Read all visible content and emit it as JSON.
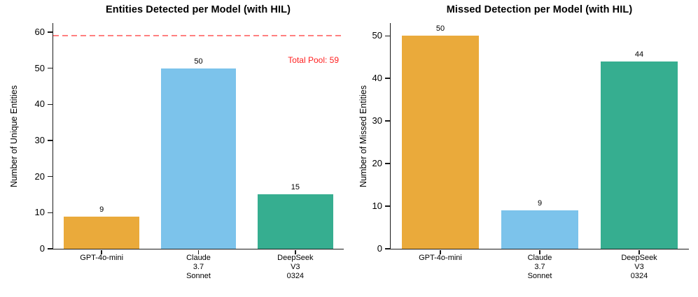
{
  "figure": {
    "background": "#ffffff",
    "text_color": "#000000",
    "axis_color": "#1a1a1a"
  },
  "chart_data": [
    {
      "type": "bar",
      "title": "Entities Detected per Model (with HIL)",
      "ylabel": "Number of Unique Entities",
      "xlabel": "",
      "categories": [
        "GPT-4o-mini",
        "Claude\n3.7\nSonnet",
        "DeepSeek\nV3\n0324"
      ],
      "values": [
        9,
        50,
        15
      ],
      "bar_labels": [
        "9",
        "50",
        "15"
      ],
      "bar_colors": [
        "#EAAA3B",
        "#7CC3EB",
        "#36AE90"
      ],
      "yticks": [
        0,
        10,
        20,
        30,
        40,
        50,
        60
      ],
      "ylim": [
        0,
        62.5
      ],
      "grid": false,
      "legend": null,
      "threshold": {
        "value": 59,
        "label": "Total Pool: 59",
        "line_color": "#FF8080",
        "label_color": "#FF1E1E",
        "style": "dashed"
      }
    },
    {
      "type": "bar",
      "title": "Missed Detection per Model (with HIL)",
      "ylabel": "Number of Missed Entities",
      "xlabel": "",
      "categories": [
        "GPT-4o-mini",
        "Claude\n3.7\nSonnet",
        "DeepSeek\nV3\n0324"
      ],
      "values": [
        50,
        9,
        44
      ],
      "bar_labels": [
        "50",
        "9",
        "44"
      ],
      "bar_colors": [
        "#EAAA3B",
        "#7CC3EB",
        "#36AE90"
      ],
      "yticks": [
        0,
        10,
        20,
        30,
        40,
        50
      ],
      "ylim": [
        0,
        53
      ],
      "grid": false,
      "legend": null,
      "threshold": null
    }
  ]
}
